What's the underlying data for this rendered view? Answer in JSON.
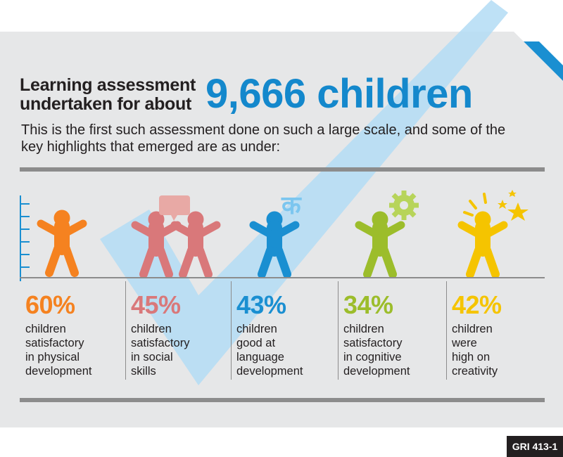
{
  "header": {
    "title_line1": "Learning assessment",
    "title_line2": "undertaken for about",
    "title_highlight": "9,666 children",
    "subtitle": "This is the first such assessment done on such a large scale, and some of the key highlights that emerged are as under:"
  },
  "decor": {
    "devanagari_letter": "क"
  },
  "highlights": [
    {
      "percent": "60%",
      "text": "children\nsatisfactory\nin physical\ndevelopment",
      "color": "#f58220",
      "icon": "child-icon"
    },
    {
      "percent": "45%",
      "text": "children\nsatisfactory\nin social\nskills",
      "color": "#d9787a",
      "icon": "two-children-icon"
    },
    {
      "percent": "43%",
      "text": "children\ngood at\nlanguage\ndevelopment",
      "color": "#1a8fd1",
      "icon": "child-language-icon"
    },
    {
      "percent": "34%",
      "text": "children\nsatisfactory\nin cognitive\ndevelopment",
      "color": "#9cbd2b",
      "icon": "child-gear-icon"
    },
    {
      "percent": "42%",
      "text": "children\nwere\nhigh on\ncreativity",
      "color": "#f5c400",
      "icon": "child-stars-icon"
    }
  ],
  "badge": {
    "label": "GRI 413-1"
  },
  "colors": {
    "accent": "#1488cc",
    "checkmark": "#b3dcf5",
    "panel": "#e6e7e8"
  }
}
